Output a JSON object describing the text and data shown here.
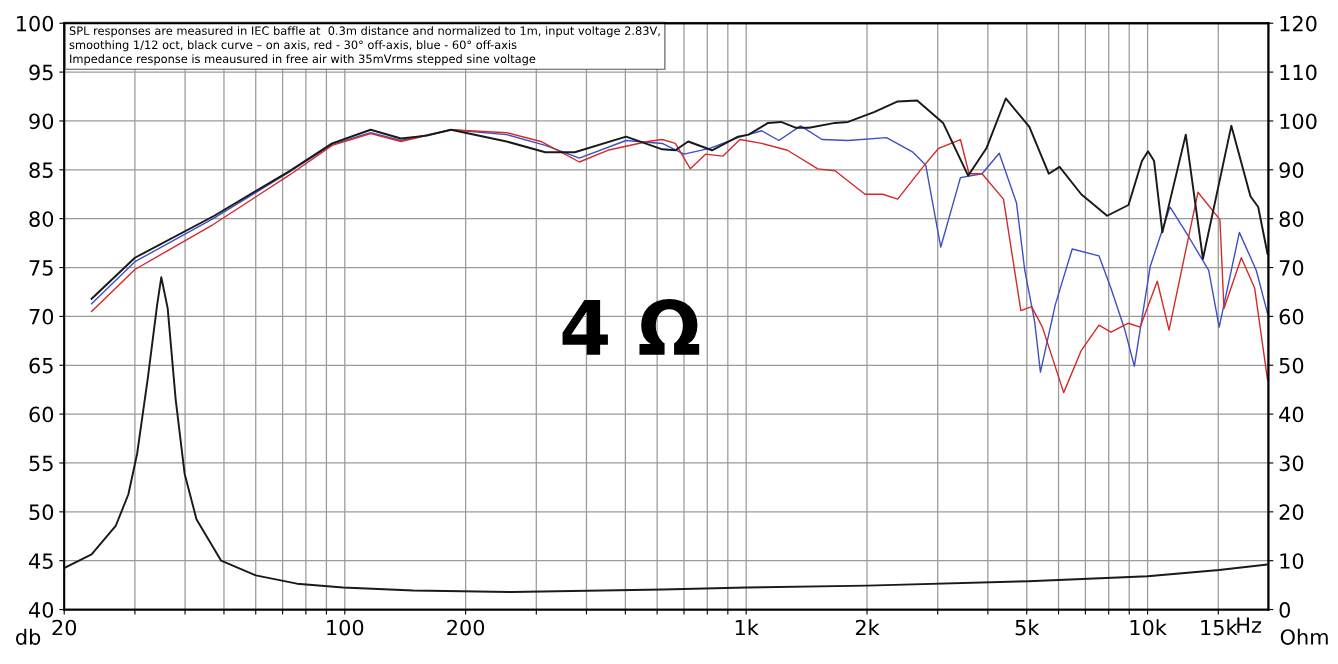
{
  "chart_data": {
    "type": "line",
    "annotations": [
      "SPL responses are measured in IEC baffle at  0.3m distance and normalized to 1m, input voltage 2.83V,\nsmoothing 1/12 oct, black curve – on axis, red - 30° off-axis, blue - 60° off-axis\nImpedance response is meausured in free air with 35mVrms stepped sine voltage",
      "4 Ω"
    ],
    "ylabel": "db",
    "y2label": "Ohm",
    "log": "x",
    "grid": true,
    "xlim": [
      20,
      20000
    ],
    "ylim": [
      40,
      100
    ],
    "y2lim": [
      0,
      120
    ],
    "xticks": [
      20,
      {
        "value": 30,
        "label": null
      },
      {
        "value": 40,
        "label": null
      },
      {
        "value": 50,
        "label": null
      },
      {
        "value": 60,
        "label": null
      },
      {
        "value": 70,
        "label": null
      },
      {
        "value": 80,
        "label": null
      },
      {
        "value": 90,
        "label": null
      },
      100,
      200,
      {
        "value": 300,
        "label": null
      },
      {
        "value": 400,
        "label": null
      },
      {
        "value": 500,
        "label": null
      },
      {
        "value": 600,
        "label": null
      },
      {
        "value": 700,
        "label": null
      },
      {
        "value": 800,
        "label": null
      },
      {
        "value": 900,
        "label": null
      },
      {
        "value": 1000,
        "label": "1k"
      },
      {
        "value": 2000,
        "label": "2k"
      },
      {
        "value": 3000,
        "label": null
      },
      {
        "value": 4000,
        "label": null
      },
      {
        "value": 5000,
        "label": "5k"
      },
      {
        "value": 6000,
        "label": null
      },
      {
        "value": 7000,
        "label": null
      },
      {
        "value": 8000,
        "label": null
      },
      {
        "value": 9000,
        "label": null
      },
      {
        "value": 10000,
        "label": "10k"
      },
      {
        "value": 15000,
        "label": "15k"
      }
    ],
    "xlabel": "Hz",
    "yticks": [
      40,
      45,
      50,
      55,
      60,
      65,
      70,
      75,
      80,
      85,
      90,
      95,
      100
    ],
    "y2ticks": [
      0,
      10,
      20,
      30,
      40,
      50,
      60,
      70,
      80,
      90,
      100,
      110,
      120
    ],
    "series": [
      {
        "color": "#3d4fc4",
        "x": [
          23.4,
          30,
          47,
          73,
          93,
          116,
          138,
          184,
          253,
          316,
          384,
          502,
          618,
          700,
          811,
          954,
          1093,
          1206,
          1366,
          1545,
          1794,
          2237,
          2602,
          2800,
          3053,
          3418,
          3869,
          4270,
          4715,
          4944,
          5230,
          5408,
          5890,
          6490,
          7565,
          8100,
          8780,
          9270,
          10150,
          11370,
          12680,
          14200,
          15080,
          16930,
          18660,
          19900
        ],
        "values": [
          71.3,
          75.6,
          80.0,
          84.8,
          87.6,
          88.8,
          88.0,
          89.1,
          88.6,
          87.5,
          86.2,
          88.0,
          87.7,
          86.6,
          87.2,
          88.3,
          89.0,
          88.0,
          89.5,
          88.1,
          88.0,
          88.3,
          86.8,
          85.5,
          77.1,
          84.2,
          84.6,
          86.7,
          81.6,
          74.7,
          69.5,
          64.3,
          71.2,
          76.9,
          76.2,
          72.9,
          68.6,
          64.9,
          75.1,
          81.2,
          78.1,
          74.7,
          68.9,
          78.6,
          74.7,
          70.3
        ]
      },
      {
        "color": "#d42a2a",
        "x": [
          23.4,
          30,
          47,
          73,
          93,
          116,
          138,
          184,
          253,
          308,
          384,
          452,
          568,
          618,
          666,
          726,
          792,
          874,
          965,
          1093,
          1267,
          1508,
          1665,
          1977,
          2188,
          2385,
          2732,
          3016,
          3418,
          3591,
          3869,
          4375,
          4833,
          5142,
          5469,
          6180,
          6834,
          7565,
          8100,
          8963,
          9580,
          10570,
          11310,
          13350,
          15140,
          15500,
          17120,
          18480,
          19900
        ],
        "values": [
          70.5,
          74.8,
          79.4,
          84.5,
          87.5,
          88.7,
          87.9,
          89.1,
          88.8,
          87.9,
          85.8,
          87.0,
          87.9,
          88.1,
          87.7,
          85.1,
          86.6,
          86.4,
          88.1,
          87.7,
          87.0,
          85.1,
          84.9,
          82.5,
          82.5,
          82.0,
          85.1,
          87.2,
          88.1,
          84.6,
          84.6,
          82.0,
          70.6,
          71.0,
          68.9,
          62.2,
          66.5,
          69.1,
          68.4,
          69.3,
          68.9,
          73.6,
          68.6,
          82.7,
          79.9,
          70.8,
          76.0,
          72.9,
          63.5
        ]
      },
      {
        "color": "#1a1a1a",
        "x": [
          23.4,
          30,
          47.3,
          73,
          93,
          116,
          138,
          160,
          184,
          253,
          316,
          374,
          502,
          618,
          666,
          717,
          822,
          954,
          1014,
          1134,
          1221,
          1332,
          1435,
          1665,
          1794,
          2082,
          2385,
          2667,
          3094,
          3572,
          3967,
          4433,
          5075,
          5672,
          6036,
          6834,
          7928,
          8963,
          9680,
          10025,
          10380,
          10887,
          12449,
          13737,
          16166,
          18040,
          18860,
          19900
        ],
        "values": [
          71.8,
          76.0,
          80.3,
          84.9,
          87.7,
          89.1,
          88.2,
          88.5,
          89.1,
          87.9,
          86.8,
          86.8,
          88.4,
          87.1,
          87.0,
          87.9,
          87.0,
          88.4,
          88.6,
          89.8,
          89.9,
          89.3,
          89.3,
          89.8,
          89.9,
          90.9,
          92.0,
          92.1,
          89.8,
          84.4,
          87.2,
          92.3,
          89.4,
          84.6,
          85.3,
          82.5,
          80.3,
          81.4,
          85.9,
          86.9,
          85.9,
          78.6,
          88.6,
          75.9,
          89.5,
          82.3,
          81.2,
          76.4
        ]
      },
      {
        "color": "#1a1a1a",
        "axis": "y2",
        "x": [
          20,
          23.4,
          26.9,
          28.9,
          30.4,
          32.3,
          34.1,
          34.9,
          36.2,
          37.9,
          39.9,
          42.7,
          49.2,
          60,
          76,
          99,
          148,
          260,
          620,
          1000,
          2003,
          5051,
          10000,
          15070,
          19790
        ],
        "values": [
          8.5,
          11.3,
          17.2,
          23.6,
          32,
          47.3,
          62.5,
          68.0,
          61.7,
          43,
          27.8,
          18.5,
          10,
          7.0,
          5.3,
          4.5,
          3.9,
          3.6,
          4.1,
          4.5,
          4.9,
          5.8,
          6.8,
          8.1,
          9.2
        ]
      }
    ]
  }
}
